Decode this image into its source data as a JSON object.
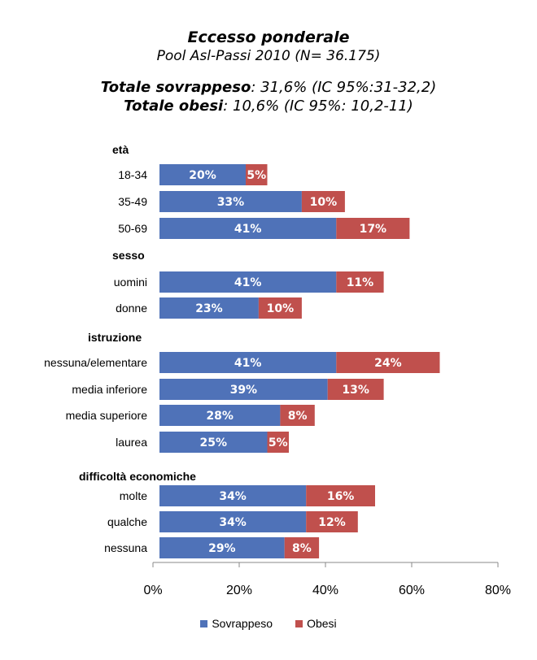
{
  "title": {
    "main": "Eccesso ponderale",
    "sub": "Pool Asl-Passi 2010 (N= 36.175)",
    "line1_bold": "Totale sovrappeso",
    "line1_rest": ": 31,6% (IC 95%:31-32,2)",
    "line2_bold": "Totale obesi",
    "line2_rest": ": 10,6% (IC 95%: 10,2-11)"
  },
  "colors": {
    "sovrappeso": "#4f72b8",
    "obesi": "#c0504d"
  },
  "chart_data": {
    "type": "bar",
    "orientation": "horizontal",
    "stacked": true,
    "xlim": [
      0,
      80
    ],
    "x_ticks": [
      "0%",
      "20%",
      "40%",
      "60%",
      "80%"
    ],
    "groups": [
      {
        "label": "età",
        "categories": [
          "18-34",
          "35-49",
          "50-69"
        ],
        "sovrappeso": [
          20,
          33,
          41
        ],
        "obesi": [
          5,
          10,
          17
        ]
      },
      {
        "label": "sesso",
        "categories": [
          "uomini",
          "donne"
        ],
        "sovrappeso": [
          41,
          23
        ],
        "obesi": [
          11,
          10
        ]
      },
      {
        "label": "istruzione",
        "categories": [
          "nessuna/elementare",
          "media inferiore",
          "media superiore",
          "laurea"
        ],
        "sovrappeso": [
          41,
          39,
          28,
          25
        ],
        "obesi": [
          24,
          13,
          8,
          5
        ]
      },
      {
        "label": "difficoltà economiche",
        "categories": [
          "molte",
          "qualche",
          "nessuna"
        ],
        "sovrappeso": [
          34,
          34,
          29
        ],
        "obesi": [
          16,
          12,
          8
        ]
      }
    ],
    "series": [
      {
        "name": "Sovrappeso",
        "key": "sovrappeso"
      },
      {
        "name": "Obesi",
        "key": "obesi"
      }
    ],
    "data_label_suffix": "%",
    "legend_position": "bottom",
    "grid": false
  }
}
